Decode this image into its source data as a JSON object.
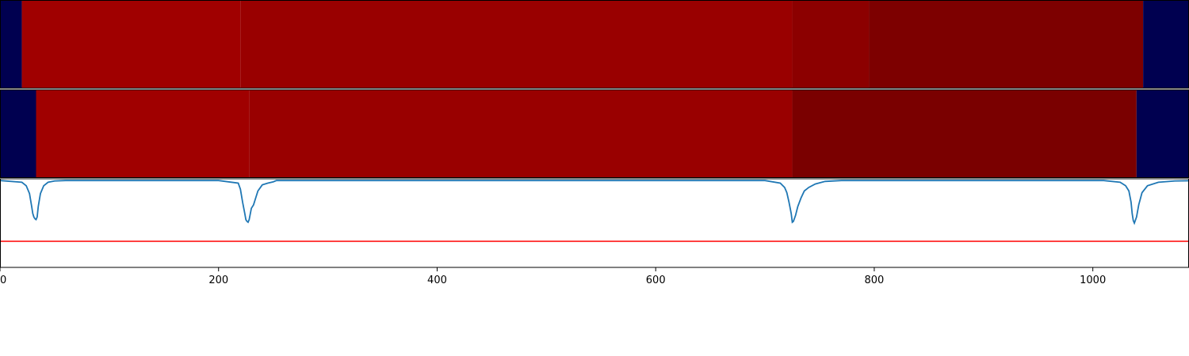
{
  "chart_data": [
    {
      "type": "heatmap",
      "xlim": [
        0,
        1088
      ],
      "colors": {
        "low": "#000050",
        "mid": "#990000",
        "high": "#a00000",
        "dark": "#7a0000"
      },
      "segments": [
        {
          "start": 0,
          "end": 20,
          "color": "#000050"
        },
        {
          "start": 20,
          "end": 220,
          "color": "#a00000"
        },
        {
          "start": 220,
          "end": 725,
          "color": "#990000"
        },
        {
          "start": 725,
          "end": 795,
          "color": "#8c0000"
        },
        {
          "start": 795,
          "end": 1046,
          "color": "#7d0000"
        },
        {
          "start": 1046,
          "end": 1088,
          "color": "#000050"
        }
      ]
    },
    {
      "type": "heatmap",
      "xlim": [
        0,
        1088
      ],
      "segments": [
        {
          "start": 0,
          "end": 33,
          "color": "#000050"
        },
        {
          "start": 33,
          "end": 228,
          "color": "#a00000"
        },
        {
          "start": 228,
          "end": 725,
          "color": "#990000"
        },
        {
          "start": 725,
          "end": 1040,
          "color": "#7a0000"
        },
        {
          "start": 1040,
          "end": 1088,
          "color": "#000050"
        }
      ]
    },
    {
      "type": "line",
      "xlim": [
        0,
        1088
      ],
      "ylim": [
        -1.0,
        0.02
      ],
      "series_color": "#1f77b4",
      "threshold": {
        "value": -0.7,
        "color": "#ff0000"
      },
      "x": [
        0,
        20,
        24,
        27,
        29,
        30,
        31,
        32,
        33,
        34,
        35,
        37,
        40,
        44,
        50,
        60,
        200,
        218,
        220,
        222,
        224,
        225,
        226,
        227,
        228,
        230,
        232,
        234,
        236,
        240,
        245,
        250,
        253,
        700,
        714,
        718,
        720,
        722,
        724,
        725,
        726,
        728,
        730,
        733,
        736,
        740,
        746,
        755,
        770,
        1010,
        1025,
        1030,
        1033,
        1035,
        1036,
        1037,
        1038,
        1040,
        1042,
        1045,
        1050,
        1060,
        1075,
        1088
      ],
      "y": [
        0.0,
        -0.02,
        -0.06,
        -0.15,
        -0.3,
        -0.38,
        -0.42,
        -0.44,
        -0.45,
        -0.42,
        -0.3,
        -0.15,
        -0.06,
        -0.02,
        -0.005,
        0.0,
        0.0,
        -0.03,
        -0.1,
        -0.25,
        -0.38,
        -0.45,
        -0.47,
        -0.48,
        -0.45,
        -0.32,
        -0.28,
        -0.2,
        -0.12,
        -0.05,
        -0.03,
        -0.015,
        0.0,
        0.0,
        -0.03,
        -0.08,
        -0.14,
        -0.25,
        -0.38,
        -0.48,
        -0.47,
        -0.4,
        -0.3,
        -0.2,
        -0.12,
        -0.08,
        -0.04,
        -0.01,
        0.0,
        0.0,
        -0.02,
        -0.06,
        -0.12,
        -0.25,
        -0.38,
        -0.46,
        -0.49,
        -0.42,
        -0.28,
        -0.14,
        -0.06,
        -0.02,
        -0.005,
        -0.002
      ]
    }
  ],
  "x_axis": {
    "ticks": [
      0,
      200,
      400,
      600,
      800,
      1000
    ],
    "tick_labels": [
      "0",
      "200",
      "400",
      "600",
      "800",
      "1000"
    ]
  }
}
